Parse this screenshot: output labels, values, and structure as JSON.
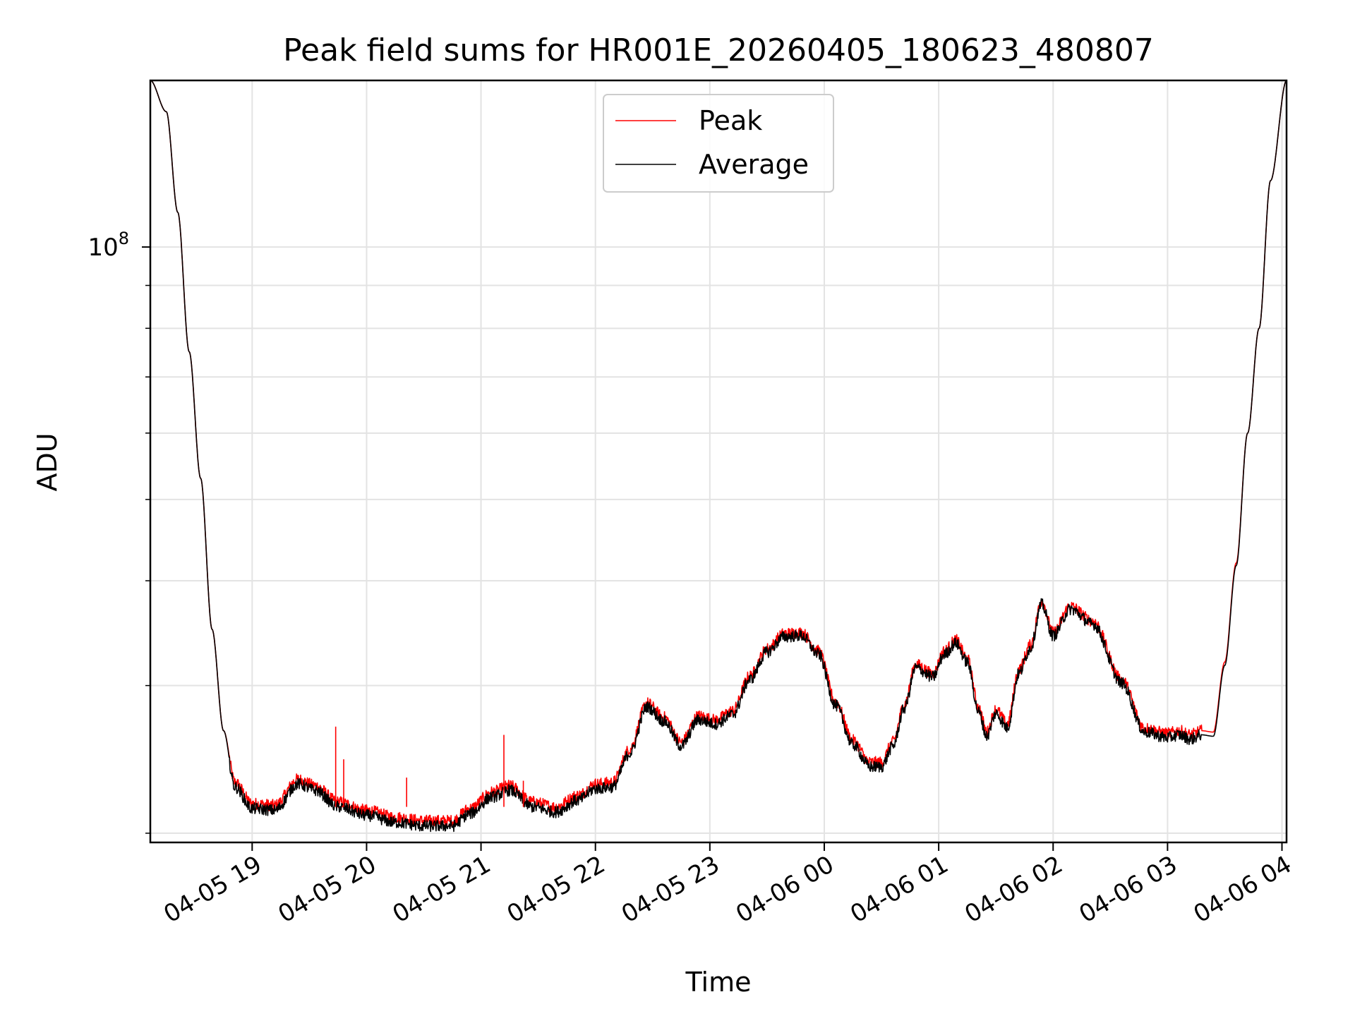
{
  "chart_data": {
    "type": "line",
    "title": "Peak field sums for HR001E_20260405_180623_480807",
    "xlabel": "Time",
    "ylabel": "ADU",
    "yscale": "log",
    "grid": true,
    "legend_position": "top-center",
    "xlim": [
      18.11,
      28.04
    ],
    "ylim": [
      19500000,
      158000000
    ],
    "x_unit": "hours since 04-05 00:00",
    "x_ticks": [
      {
        "value": 19,
        "label": "04-05 19"
      },
      {
        "value": 20,
        "label": "04-05 20"
      },
      {
        "value": 21,
        "label": "04-05 21"
      },
      {
        "value": 22,
        "label": "04-05 22"
      },
      {
        "value": 23,
        "label": "04-05 23"
      },
      {
        "value": 24,
        "label": "04-06 00"
      },
      {
        "value": 25,
        "label": "04-06 01"
      },
      {
        "value": 26,
        "label": "04-06 02"
      },
      {
        "value": 27,
        "label": "04-06 03"
      },
      {
        "value": 28,
        "label": "04-06 04"
      }
    ],
    "y_major_ticks": [
      {
        "value": 100000000,
        "base": "10",
        "exp": "8"
      }
    ],
    "y_minor_ticks": [
      20000000,
      30000000,
      40000000,
      50000000,
      60000000,
      70000000,
      80000000,
      90000000,
      200000000
    ],
    "series": [
      {
        "name": "Peak",
        "color": "#ff0000",
        "x": [
          18.11,
          18.25,
          18.35,
          18.45,
          18.55,
          18.65,
          18.75,
          18.85,
          19.0,
          19.2,
          19.4,
          19.55,
          19.75,
          20.0,
          20.25,
          20.5,
          20.75,
          20.9,
          21.1,
          21.25,
          21.45,
          21.65,
          21.85,
          22.0,
          22.15,
          22.3,
          22.45,
          22.6,
          22.75,
          22.9,
          23.05,
          23.2,
          23.35,
          23.5,
          23.65,
          23.8,
          23.95,
          24.1,
          24.25,
          24.4,
          24.5,
          24.6,
          24.7,
          24.8,
          24.95,
          25.05,
          25.15,
          25.25,
          25.35,
          25.42,
          25.5,
          25.6,
          25.7,
          25.8,
          25.9,
          26.0,
          26.15,
          26.35,
          26.6,
          26.8,
          27.0,
          27.1,
          27.2,
          27.3,
          27.4,
          27.5,
          27.6,
          27.7,
          27.8,
          27.9,
          28.04
        ],
        "y": [
          158000000,
          145000000,
          110000000,
          75000000,
          53000000,
          35000000,
          26500000,
          23000000,
          21700000,
          21600000,
          23200000,
          22800000,
          21800000,
          21300000,
          20900000,
          20700000,
          20700000,
          21400000,
          22400000,
          22800000,
          21800000,
          21500000,
          22200000,
          22900000,
          23000000,
          25200000,
          28600000,
          27500000,
          25700000,
          27600000,
          27300000,
          28000000,
          30800000,
          33200000,
          34600000,
          34700000,
          33000000,
          28700000,
          25800000,
          24300000,
          24300000,
          25700000,
          28500000,
          31800000,
          31000000,
          33000000,
          34000000,
          32300000,
          28200000,
          26400000,
          28100000,
          27000000,
          31300000,
          33500000,
          37800000,
          34700000,
          37300000,
          35800000,
          30500000,
          26700000,
          26300000,
          26500000,
          26200000,
          26500000,
          26400000,
          32000000,
          42000000,
          60000000,
          80000000,
          120000000,
          158000000
        ]
      },
      {
        "name": "Average",
        "color": "#000000",
        "x": [
          18.11,
          18.25,
          18.35,
          18.45,
          18.55,
          18.65,
          18.75,
          18.85,
          19.0,
          19.2,
          19.4,
          19.55,
          19.75,
          20.0,
          20.25,
          20.5,
          20.75,
          20.9,
          21.1,
          21.25,
          21.45,
          21.65,
          21.85,
          22.0,
          22.15,
          22.3,
          22.45,
          22.6,
          22.75,
          22.9,
          23.05,
          23.2,
          23.35,
          23.5,
          23.65,
          23.8,
          23.95,
          24.1,
          24.25,
          24.4,
          24.5,
          24.6,
          24.7,
          24.8,
          24.95,
          25.05,
          25.15,
          25.25,
          25.35,
          25.42,
          25.5,
          25.6,
          25.7,
          25.8,
          25.9,
          26.0,
          26.15,
          26.35,
          26.6,
          26.8,
          27.0,
          27.1,
          27.2,
          27.3,
          27.4,
          27.5,
          27.6,
          27.7,
          27.8,
          27.9,
          28.04
        ],
        "y": [
          158000000,
          145000000,
          110000000,
          75000000,
          53000000,
          35000000,
          26500000,
          22700000,
          21400000,
          21300000,
          22900000,
          22500000,
          21500000,
          21000000,
          20600000,
          20400000,
          20400000,
          21100000,
          22100000,
          22500000,
          21500000,
          21200000,
          21900000,
          22600000,
          22700000,
          24900000,
          28300000,
          27200000,
          25400000,
          27300000,
          27000000,
          27700000,
          30500000,
          32900000,
          34300000,
          34400000,
          32700000,
          28400000,
          25500000,
          24000000,
          24000000,
          25400000,
          28200000,
          31500000,
          30700000,
          32700000,
          33700000,
          32000000,
          27900000,
          26100000,
          27800000,
          26700000,
          31000000,
          33200000,
          37500000,
          34400000,
          37000000,
          35500000,
          30200000,
          26400000,
          26000000,
          26200000,
          25900000,
          26200000,
          26100000,
          31700000,
          41700000,
          60000000,
          80000000,
          120000000,
          158000000
        ]
      }
    ]
  }
}
